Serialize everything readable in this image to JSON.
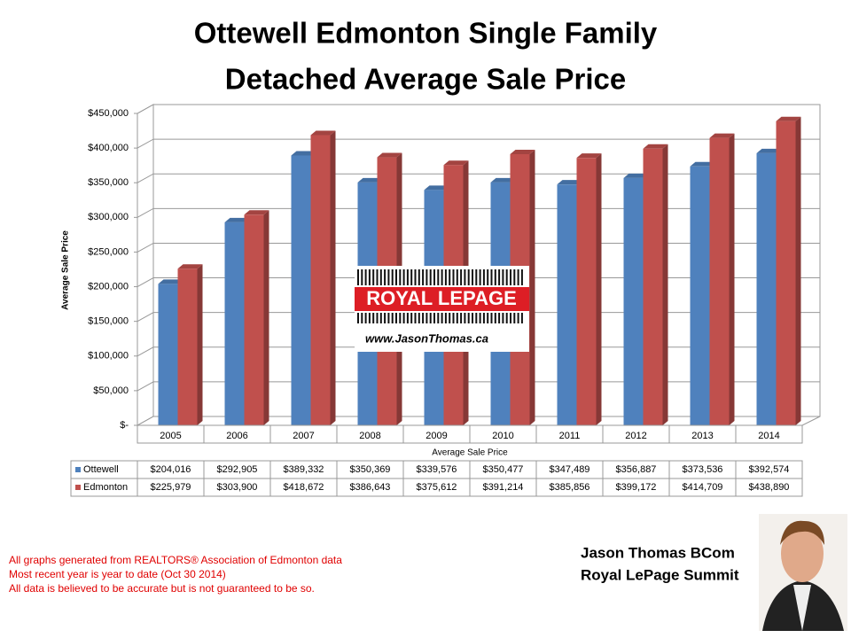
{
  "chart_data": {
    "type": "bar",
    "title": [
      "Ottewell Edmonton Single Family",
      "Detached Average Sale Price"
    ],
    "ylabel": "Average Sale Price",
    "xlabel": "Average Sale Price",
    "categories": [
      "2005",
      "2006",
      "2007",
      "2008",
      "2009",
      "2010",
      "2011",
      "2012",
      "2013",
      "2014"
    ],
    "series": [
      {
        "name": "Ottewell",
        "color": "#4f81bd",
        "values": [
          204016,
          292905,
          389332,
          350369,
          339576,
          350477,
          347489,
          356887,
          373536,
          392574
        ],
        "value_labels": [
          "$204,016",
          "$292,905",
          "$389,332",
          "$350,369",
          "$339,576",
          "$350,477",
          "$347,489",
          "$356,887",
          "$373,536",
          "$392,574"
        ]
      },
      {
        "name": "Edmonton",
        "color": "#c0504d",
        "values": [
          225979,
          303900,
          418672,
          386643,
          375612,
          391214,
          385856,
          399172,
          414709,
          438890
        ],
        "value_labels": [
          "$225,979",
          "$303,900",
          "$418,672",
          "$386,643",
          "$375,612",
          "$391,214",
          "$385,856",
          "$399,172",
          "$414,709",
          "$438,890"
        ]
      }
    ],
    "ylim": [
      0,
      450000
    ],
    "yticks": [
      {
        "value": 0,
        "label": "$-"
      },
      {
        "value": 50000,
        "label": "$50,000"
      },
      {
        "value": 100000,
        "label": "$100,000"
      },
      {
        "value": 150000,
        "label": "$150,000"
      },
      {
        "value": 200000,
        "label": "$200,000"
      },
      {
        "value": 250000,
        "label": "$250,000"
      },
      {
        "value": 300000,
        "label": "$300,000"
      },
      {
        "value": 350000,
        "label": "$350,000"
      },
      {
        "value": 400000,
        "label": "$400,000"
      },
      {
        "value": 450000,
        "label": "$450,000"
      }
    ],
    "grid": true
  },
  "logo": {
    "brand": "ROYAL LEPAGE",
    "url": "www.JasonThomas.ca"
  },
  "agent": {
    "name": "Jason Thomas BCom",
    "company": "Royal LePage Summit"
  },
  "footnotes": [
    "All graphs generated from REALTORS® Association of Edmonton data",
    "Most recent year is year to date (Oct 30 2014)",
    "All data is believed to be accurate but is not guaranteed to be so."
  ]
}
